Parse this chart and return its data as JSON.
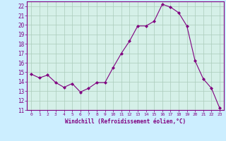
{
  "x": [
    0,
    1,
    2,
    3,
    4,
    5,
    6,
    7,
    8,
    9,
    10,
    11,
    12,
    13,
    14,
    15,
    16,
    17,
    18,
    19,
    20,
    21,
    22,
    23
  ],
  "y": [
    14.8,
    14.4,
    14.7,
    13.9,
    13.4,
    13.8,
    12.9,
    13.3,
    13.9,
    13.9,
    15.5,
    17.0,
    18.3,
    19.9,
    19.9,
    20.4,
    22.2,
    21.9,
    21.3,
    19.9,
    16.2,
    14.3,
    13.3,
    11.2
  ],
  "line_color": "#800080",
  "marker": "D",
  "marker_size": 2.0,
  "bg_color": "#cceeff",
  "plot_bg_color": "#d5f0e8",
  "grid_color": "#aaccbb",
  "xlabel": "Windchill (Refroidissement éolien,°C)",
  "ylabel_ticks": [
    11,
    12,
    13,
    14,
    15,
    16,
    17,
    18,
    19,
    20,
    21,
    22
  ],
  "xlim": [
    -0.5,
    23.5
  ],
  "ylim": [
    11,
    22.5
  ],
  "figsize": [
    3.2,
    2.0
  ],
  "dpi": 100
}
